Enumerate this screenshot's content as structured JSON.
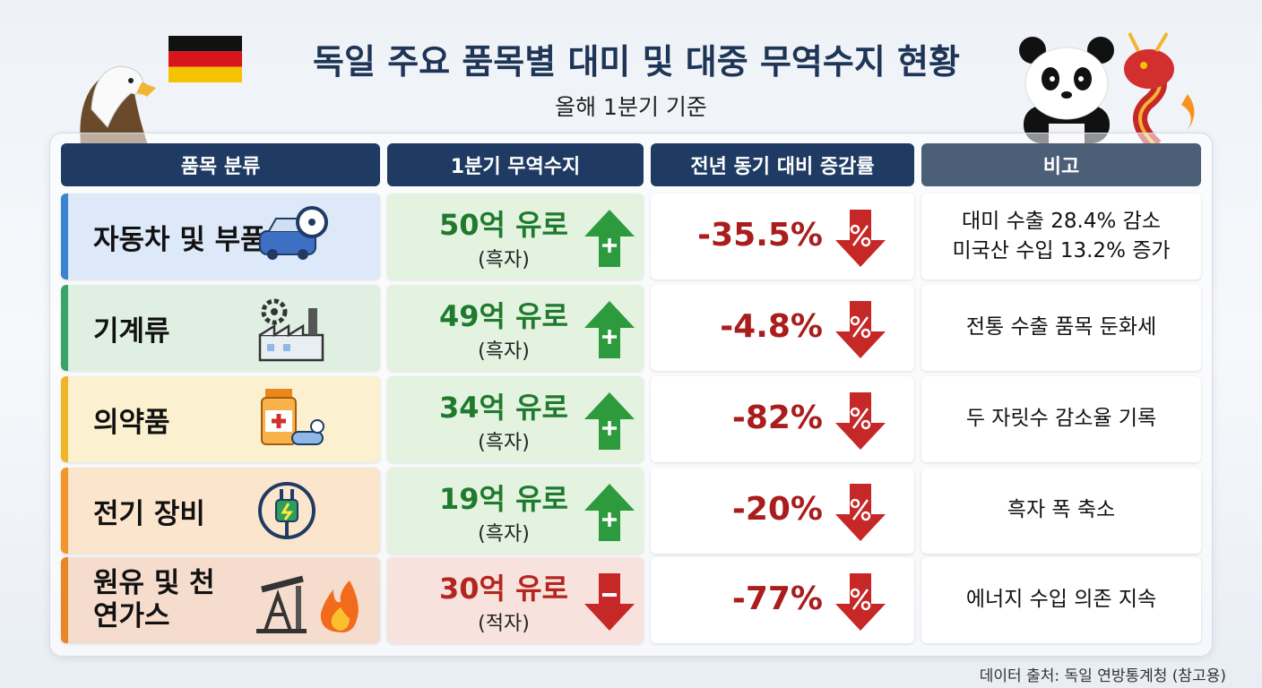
{
  "header": {
    "title": "독일 주요 품목별 대미 및 대중 무역수지 현황",
    "subtitle": "올해 1분기 기준"
  },
  "table": {
    "headers": [
      "품목 분류",
      "1분기 무역수지",
      "전년 동기 대비 증감률",
      "비고"
    ],
    "rows": [
      {
        "category": "자동차 및 부품",
        "amount": "50억 유로",
        "status": "(흑자)",
        "direction": "up",
        "change": "-35.5%",
        "change_direction": "down",
        "note": [
          "대미 수출 28.4% 감소",
          "미국산 수입 13.2% 증가"
        ]
      },
      {
        "category": "기계류",
        "amount": "49억 유로",
        "status": "(흑자)",
        "direction": "up",
        "change": "-4.8%",
        "change_direction": "down",
        "note": [
          "전통 수출 품목 둔화세"
        ]
      },
      {
        "category": "의약품",
        "amount": "34억 유로",
        "status": "(흑자)",
        "direction": "up",
        "change": "-82%",
        "change_direction": "down",
        "note": [
          "두 자릿수 감소율 기록"
        ]
      },
      {
        "category": "전기 장비",
        "amount": "19억 유로",
        "status": "(흑자)",
        "direction": "up",
        "change": "-20%",
        "change_direction": "down",
        "note": [
          "흑자 폭 축소"
        ]
      },
      {
        "category": "원유 및 천연가스",
        "amount": "30억 유로",
        "status": "(적자)",
        "direction": "down",
        "change": "-77%",
        "change_direction": "down",
        "note": [
          "에너지 수입 의존 지속"
        ]
      }
    ]
  },
  "source": "데이터 출처: 독일 연방통계청 (참고용)"
}
